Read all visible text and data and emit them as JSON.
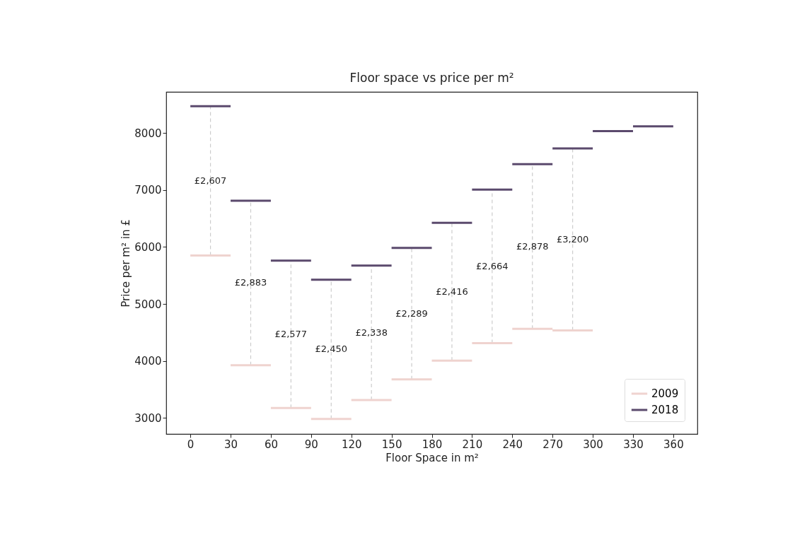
{
  "chart_data": {
    "type": "line",
    "title": "Floor space vs price per m²",
    "xlabel": "Floor Space in m²",
    "ylabel": "Price per m² in £",
    "marker": "none",
    "grid": false,
    "legend": "bottom right",
    "xlim": [
      -18,
      378
    ],
    "xticks": [
      0,
      30,
      60,
      90,
      120,
      150,
      180,
      210,
      240,
      270,
      300,
      330,
      360
    ],
    "ylim": [
      2720,
      8720
    ],
    "yticks": [
      3000,
      4000,
      5000,
      6000,
      7000,
      8000
    ],
    "series": [
      {
        "color": "#cccccc",
        "line_style": "dashed",
        "x": [
          15,
          15,
          null,
          45,
          45,
          null,
          75,
          75,
          null,
          105,
          105,
          null,
          135,
          135,
          null,
          165,
          165,
          null,
          195,
          195,
          null,
          225,
          225,
          null,
          255,
          255,
          null,
          285,
          285
        ],
        "values": [
          5850,
          8470,
          null,
          3925,
          6812,
          null,
          3177,
          5760,
          null,
          2983,
          5426,
          null,
          3314,
          5673,
          null,
          3677,
          5983,
          null,
          4006,
          6424,
          null,
          4312,
          7006,
          null,
          4563,
          7452,
          null,
          4535,
          7728
        ]
      },
      {
        "name": "2009",
        "color": "#efd3cf",
        "line_style": "solid",
        "x": [
          0,
          30,
          null,
          30,
          60,
          null,
          60,
          90,
          null,
          90,
          120,
          null,
          120,
          150,
          null,
          150,
          180,
          null,
          180,
          210,
          null,
          210,
          240,
          null,
          240,
          270,
          null,
          270,
          300
        ],
        "values": [
          5850,
          5850,
          null,
          3925,
          3925,
          null,
          3177,
          3177,
          null,
          2983,
          2983,
          null,
          3314,
          3314,
          null,
          3677,
          3677,
          null,
          4006,
          4006,
          null,
          4312,
          4312,
          null,
          4563,
          4563,
          null,
          4535,
          4535
        ]
      },
      {
        "name": "2018",
        "color": "#5b4a6d",
        "line_style": "solid",
        "x": [
          0,
          30,
          null,
          30,
          60,
          null,
          60,
          90,
          null,
          90,
          120,
          null,
          120,
          150,
          null,
          150,
          180,
          null,
          180,
          210,
          null,
          210,
          240,
          null,
          240,
          270,
          null,
          270,
          300,
          null,
          300,
          330,
          null,
          330,
          360
        ],
        "values": [
          8470,
          8470,
          null,
          6812,
          6812,
          null,
          5760,
          5760,
          null,
          5426,
          5426,
          null,
          5673,
          5673,
          null,
          5983,
          5983,
          null,
          6424,
          6424,
          null,
          7006,
          7006,
          null,
          7452,
          7452,
          null,
          7728,
          7728,
          null,
          8033,
          8033,
          null,
          8115,
          8115
        ]
      }
    ],
    "annotations": [
      {
        "text": "£2,607",
        "x": 15,
        "y": 7160
      },
      {
        "text": "£2,883",
        "x": 45,
        "y": 5368
      },
      {
        "text": "£2,577",
        "x": 75,
        "y": 4468
      },
      {
        "text": "£2,450",
        "x": 105,
        "y": 4204
      },
      {
        "text": "£2,338",
        "x": 135,
        "y": 4493
      },
      {
        "text": "£2,289",
        "x": 165,
        "y": 4830
      },
      {
        "text": "£2,416",
        "x": 195,
        "y": 5215
      },
      {
        "text": "£2,664",
        "x": 225,
        "y": 5659
      },
      {
        "text": "£2,878",
        "x": 255,
        "y": 6007
      },
      {
        "text": "£3,200",
        "x": 285,
        "y": 6131
      }
    ]
  }
}
